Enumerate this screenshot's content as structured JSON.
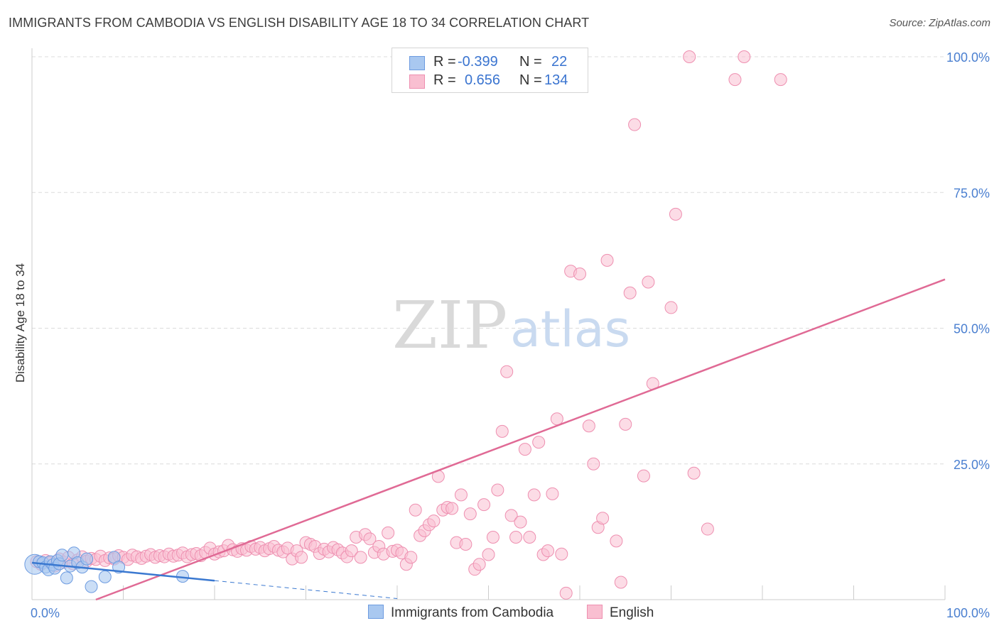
{
  "title": "IMMIGRANTS FROM CAMBODIA VS ENGLISH DISABILITY AGE 18 TO 34 CORRELATION CHART",
  "source": "Source: ZipAtlas.com",
  "watermark": {
    "zip": "ZIP",
    "atlas": "atlas"
  },
  "legend": {
    "rows": [
      {
        "r_label": "R =",
        "r_value": "-0.399",
        "n_label": "N =",
        "n_value": "22",
        "color": "#a9c8f0",
        "border": "#6d9be0"
      },
      {
        "r_label": "R =",
        "r_value": "0.656",
        "n_label": "N =",
        "n_value": "134",
        "color": "#f9bfd1",
        "border": "#ee8fb0"
      }
    ]
  },
  "bottom_legend": {
    "items": [
      {
        "label": "Immigrants from Cambodia",
        "color": "#a9c8f0",
        "border": "#6d9be0"
      },
      {
        "label": "English",
        "color": "#f9bfd1",
        "border": "#ee8fb0"
      }
    ]
  },
  "chart_data": {
    "type": "scatter",
    "title": "IMMIGRANTS FROM CAMBODIA VS ENGLISH DISABILITY AGE 18 TO 34 CORRELATION CHART",
    "xlabel": "",
    "ylabel": "Disability Age 18 to 34",
    "xlim": [
      0,
      100
    ],
    "ylim": [
      0,
      100
    ],
    "x_tick_labels": [
      "0.0%",
      "100.0%"
    ],
    "y_tick_labels": [
      "25.0%",
      "50.0%",
      "75.0%",
      "100.0%"
    ],
    "y_ticks": [
      25,
      50,
      75,
      100
    ],
    "grid": true,
    "series": [
      {
        "name": "Immigrants from Cambodia",
        "color": "#a9c8f0",
        "stroke": "#6d9be0",
        "trend": {
          "x0": 0,
          "y0": 6.8,
          "x1": 20,
          "y1": 3.5,
          "dash_to_x": 40,
          "dash_to_y": 0.2,
          "color": "#3a78d0"
        },
        "points": [
          [
            0.3,
            6.5
          ],
          [
            0.8,
            7.0
          ],
          [
            1.2,
            6.8
          ],
          [
            1.5,
            6.0
          ],
          [
            1.8,
            5.5
          ],
          [
            2.0,
            7.0
          ],
          [
            2.3,
            6.4
          ],
          [
            2.5,
            5.8
          ],
          [
            2.8,
            7.2
          ],
          [
            3.0,
            6.6
          ],
          [
            3.3,
            8.2
          ],
          [
            3.8,
            4.0
          ],
          [
            4.2,
            6.2
          ],
          [
            4.6,
            8.6
          ],
          [
            5.0,
            6.8
          ],
          [
            5.5,
            6.0
          ],
          [
            6.0,
            7.5
          ],
          [
            6.5,
            2.4
          ],
          [
            8.0,
            4.2
          ],
          [
            9.0,
            7.8
          ],
          [
            9.5,
            6.0
          ],
          [
            16.5,
            4.3
          ]
        ]
      },
      {
        "name": "English",
        "color": "#f9bfd1",
        "stroke": "#ee8fb0",
        "trend": {
          "x0": 7,
          "y0": 0,
          "x1": 100,
          "y1": 59,
          "color": "#e06a95"
        },
        "points": [
          [
            0.5,
            7.0
          ],
          [
            1.0,
            6.5
          ],
          [
            1.5,
            7.2
          ],
          [
            2.0,
            6.8
          ],
          [
            2.5,
            6.2
          ],
          [
            3.0,
            7.5
          ],
          [
            3.5,
            6.9
          ],
          [
            4.0,
            7.8
          ],
          [
            4.5,
            6.6
          ],
          [
            5.0,
            7.3
          ],
          [
            5.5,
            7.9
          ],
          [
            6.0,
            7.1
          ],
          [
            6.5,
            7.6
          ],
          [
            7.0,
            7.4
          ],
          [
            7.5,
            8.0
          ],
          [
            8.0,
            7.2
          ],
          [
            8.5,
            7.7
          ],
          [
            9.0,
            7.5
          ],
          [
            9.5,
            8.1
          ],
          [
            10.0,
            7.8
          ],
          [
            10.5,
            7.4
          ],
          [
            11.0,
            8.2
          ],
          [
            11.5,
            7.9
          ],
          [
            12.0,
            7.6
          ],
          [
            12.5,
            8.0
          ],
          [
            13.0,
            8.3
          ],
          [
            13.5,
            7.8
          ],
          [
            14.0,
            8.1
          ],
          [
            14.5,
            7.9
          ],
          [
            15.0,
            8.4
          ],
          [
            15.5,
            8.0
          ],
          [
            16.0,
            8.2
          ],
          [
            16.5,
            8.6
          ],
          [
            17.0,
            7.9
          ],
          [
            17.5,
            8.3
          ],
          [
            18.0,
            8.5
          ],
          [
            18.5,
            8.1
          ],
          [
            19.0,
            8.7
          ],
          [
            19.5,
            9.5
          ],
          [
            20.0,
            8.4
          ],
          [
            20.5,
            8.8
          ],
          [
            21.0,
            9.0
          ],
          [
            21.5,
            10.0
          ],
          [
            22.0,
            9.2
          ],
          [
            22.5,
            8.9
          ],
          [
            23.0,
            9.4
          ],
          [
            23.5,
            9.1
          ],
          [
            24.0,
            9.8
          ],
          [
            24.5,
            9.3
          ],
          [
            25.0,
            9.6
          ],
          [
            25.5,
            9.0
          ],
          [
            26.0,
            9.4
          ],
          [
            26.5,
            9.8
          ],
          [
            27.0,
            9.1
          ],
          [
            27.5,
            8.8
          ],
          [
            28.0,
            9.5
          ],
          [
            28.5,
            7.5
          ],
          [
            29.0,
            9.0
          ],
          [
            29.5,
            7.8
          ],
          [
            30.0,
            10.5
          ],
          [
            30.5,
            10.2
          ],
          [
            31.0,
            9.8
          ],
          [
            31.5,
            8.5
          ],
          [
            32.0,
            9.3
          ],
          [
            32.5,
            8.8
          ],
          [
            33.0,
            9.6
          ],
          [
            33.5,
            9.2
          ],
          [
            34.0,
            8.6
          ],
          [
            34.5,
            7.9
          ],
          [
            35.0,
            9.0
          ],
          [
            35.5,
            11.5
          ],
          [
            36.0,
            7.8
          ],
          [
            36.5,
            12.0
          ],
          [
            37.0,
            11.2
          ],
          [
            37.5,
            8.7
          ],
          [
            38.0,
            9.8
          ],
          [
            38.5,
            8.4
          ],
          [
            39.0,
            12.3
          ],
          [
            39.5,
            8.9
          ],
          [
            40.0,
            9.1
          ],
          [
            40.5,
            8.6
          ],
          [
            41.0,
            6.5
          ],
          [
            41.5,
            7.8
          ],
          [
            42.0,
            16.5
          ],
          [
            42.5,
            11.8
          ],
          [
            43.0,
            12.7
          ],
          [
            43.5,
            13.8
          ],
          [
            44.0,
            14.5
          ],
          [
            44.5,
            22.7
          ],
          [
            45.0,
            16.5
          ],
          [
            45.5,
            17.0
          ],
          [
            46.0,
            16.8
          ],
          [
            46.5,
            10.5
          ],
          [
            47.0,
            19.3
          ],
          [
            47.5,
            10.2
          ],
          [
            48.0,
            15.8
          ],
          [
            48.5,
            5.6
          ],
          [
            49.0,
            6.5
          ],
          [
            49.5,
            17.5
          ],
          [
            50.0,
            8.3
          ],
          [
            50.5,
            11.5
          ],
          [
            51.0,
            20.2
          ],
          [
            51.5,
            31.0
          ],
          [
            52.0,
            42.0
          ],
          [
            52.5,
            15.5
          ],
          [
            53.0,
            11.5
          ],
          [
            53.5,
            14.3
          ],
          [
            54.0,
            27.7
          ],
          [
            54.5,
            11.5
          ],
          [
            55.0,
            19.3
          ],
          [
            55.5,
            29.0
          ],
          [
            56.0,
            8.3
          ],
          [
            56.5,
            9.0
          ],
          [
            57.0,
            19.5
          ],
          [
            57.5,
            33.3
          ],
          [
            58.0,
            8.4
          ],
          [
            58.5,
            1.2
          ],
          [
            59.0,
            60.5
          ],
          [
            60.0,
            60.0
          ],
          [
            61.0,
            32.0
          ],
          [
            61.5,
            25.0
          ],
          [
            62.0,
            13.3
          ],
          [
            62.5,
            15.0
          ],
          [
            63.0,
            62.5
          ],
          [
            64.0,
            10.8
          ],
          [
            64.5,
            3.2
          ],
          [
            65.0,
            32.3
          ],
          [
            65.5,
            56.5
          ],
          [
            66.0,
            87.5
          ],
          [
            67.0,
            22.8
          ],
          [
            67.5,
            58.5
          ],
          [
            68.0,
            39.8
          ],
          [
            70.0,
            53.8
          ],
          [
            70.5,
            71.0
          ],
          [
            72.0,
            100.0
          ],
          [
            72.5,
            23.3
          ],
          [
            74.0,
            13.0
          ],
          [
            77.0,
            95.8
          ],
          [
            78.0,
            100.0
          ],
          [
            82.0,
            95.8
          ]
        ]
      }
    ]
  }
}
